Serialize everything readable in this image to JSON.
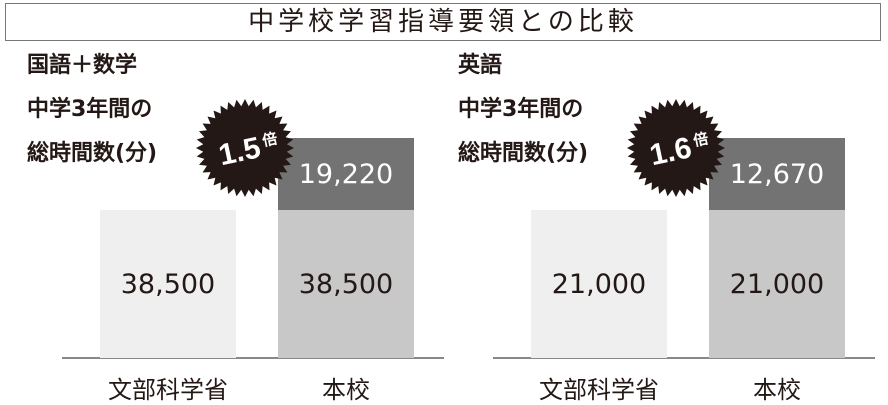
{
  "title": "中学校学習指導要領との比較",
  "chart_data": [
    {
      "type": "bar",
      "stacked": true,
      "subject": "国語＋数学",
      "subtitle_lines": [
        "中学3年間の",
        "総時間数(分)"
      ],
      "categories": [
        "文部科学省",
        "本校"
      ],
      "series": [
        {
          "values": [
            38500,
            38500
          ],
          "labels": [
            "38,500",
            "38,500"
          ]
        },
        {
          "values": [
            0,
            19220
          ],
          "labels": [
            "",
            "19,220"
          ]
        }
      ],
      "badge": "1.5",
      "badge_unit": "倍"
    },
    {
      "type": "bar",
      "stacked": true,
      "subject": "英語",
      "subtitle_lines": [
        "中学3年間の",
        "総時間数(分)"
      ],
      "categories": [
        "文部科学省",
        "本校"
      ],
      "series": [
        {
          "values": [
            21000,
            21000
          ],
          "labels": [
            "21,000",
            "21,000"
          ]
        },
        {
          "values": [
            0,
            12670
          ],
          "labels": [
            "",
            "12,670"
          ]
        }
      ],
      "badge": "1.6",
      "badge_unit": "倍"
    }
  ],
  "colors": {
    "mext": "#efefef",
    "school_base": "#c8c8c8",
    "school_extra": "#737373",
    "badge": "#231815"
  }
}
